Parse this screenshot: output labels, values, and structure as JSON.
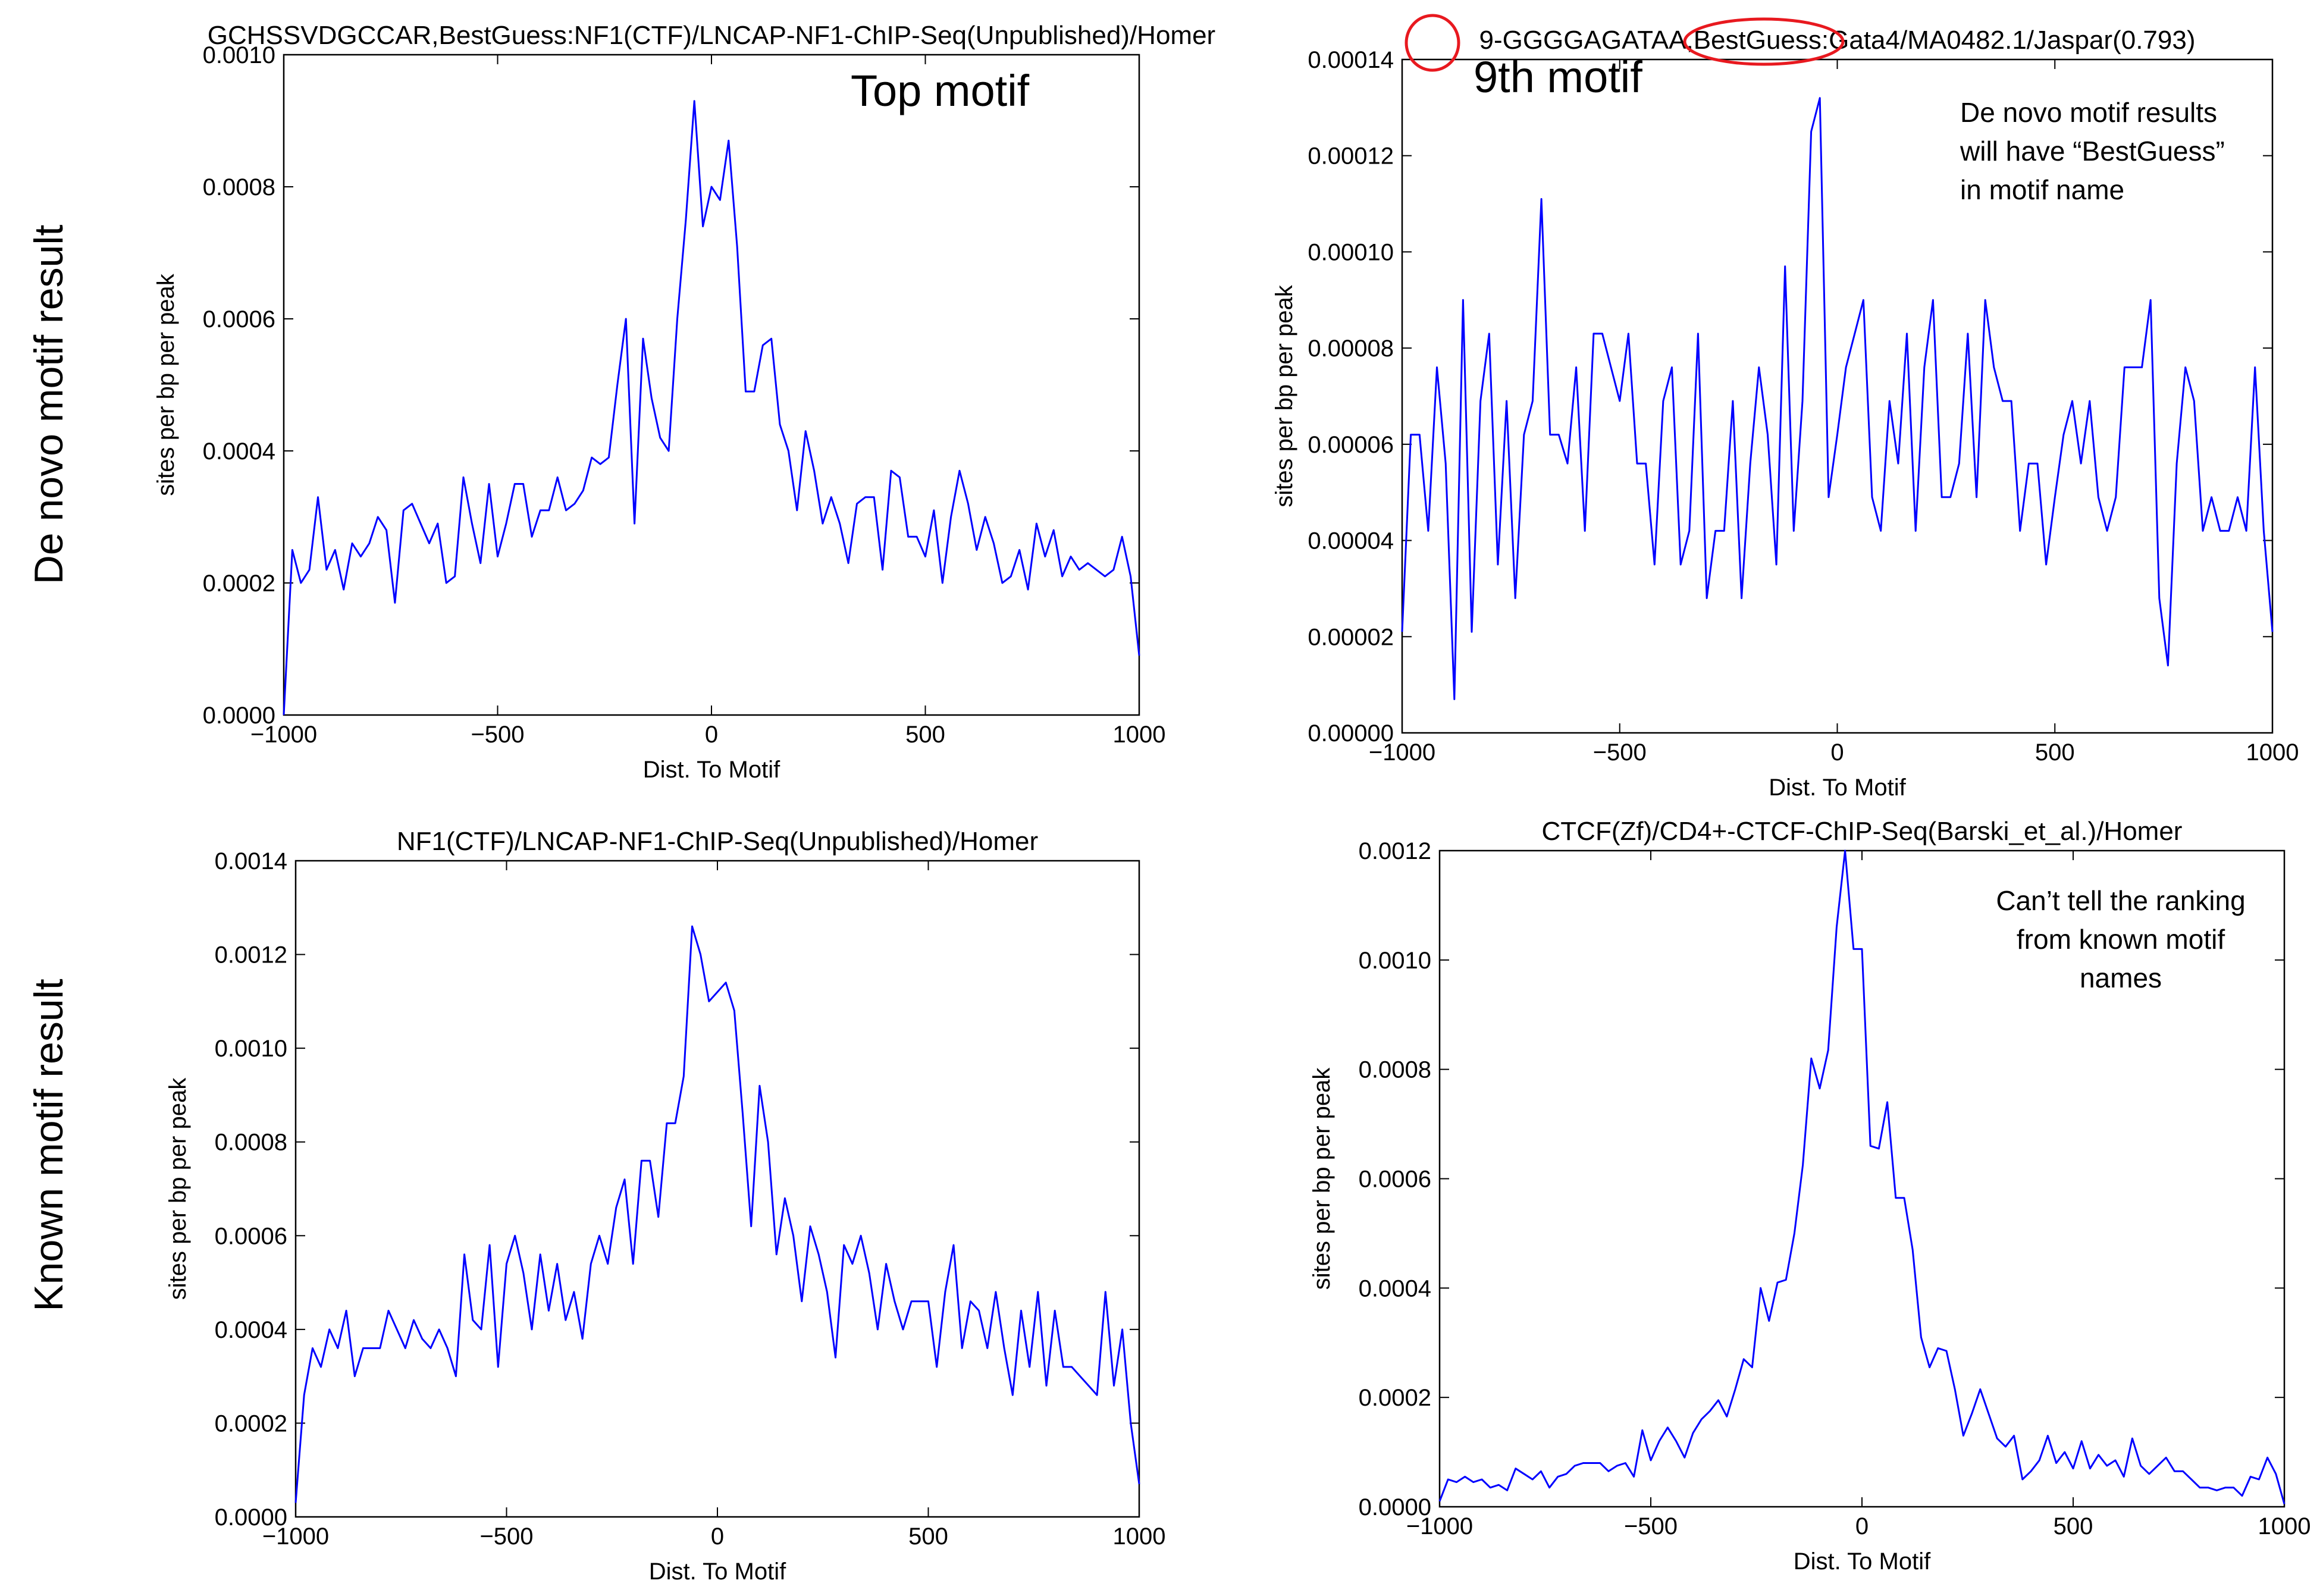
{
  "row_labels": {
    "de_novo": "De novo motif result",
    "known": "Known motif result"
  },
  "colors": {
    "line": "#0000ff",
    "highlight": "#e8191f",
    "axis": "#000000"
  },
  "chart_data": [
    {
      "id": "top-left",
      "type": "line",
      "title": "GCHSSVDGCCAR,BestGuess:NF1(CTF)/LNCAP-NF1-ChIP-Seq(Unpublished)/Homer",
      "xlabel": "Dist. To Motif",
      "ylabel": "sites per bp per peak",
      "xlim": [
        -1000,
        1000
      ],
      "ylim": [
        0,
        0.001
      ],
      "xticks": [
        -1000,
        -500,
        0,
        500,
        1000
      ],
      "xtick_labels": [
        "−1000",
        "−500",
        "0",
        "500",
        "1000"
      ],
      "yticks": [
        0,
        0.0002,
        0.0004,
        0.0006,
        0.0008,
        0.001
      ],
      "ytick_labels": [
        "0.0000",
        "0.0002",
        "0.0004",
        "0.0006",
        "0.0008",
        "0.0010"
      ],
      "annotations": [
        "Top motif"
      ],
      "series": [
        {
          "x": [
            -1000,
            -980,
            -960,
            -940,
            -920,
            -900,
            -880,
            -860,
            -840,
            -820,
            -800,
            -780,
            -760,
            -740,
            -720,
            -700,
            -680,
            -660,
            -640,
            -620,
            -600,
            -580,
            -560,
            -540,
            -520,
            -500,
            -480,
            -460,
            -440,
            -420,
            -400,
            -380,
            -360,
            -340,
            -320,
            -300,
            -280,
            -260,
            -240,
            -220,
            -200,
            -180,
            -160,
            -140,
            -120,
            -100,
            -80,
            -60,
            -40,
            -20,
            0,
            20,
            40,
            60,
            80,
            100,
            120,
            140,
            160,
            180,
            200,
            220,
            240,
            260,
            280,
            300,
            320,
            340,
            360,
            380,
            400,
            420,
            440,
            460,
            480,
            500,
            520,
            540,
            560,
            580,
            600,
            620,
            640,
            660,
            680,
            700,
            720,
            740,
            760,
            780,
            800,
            820,
            840,
            860,
            880,
            900,
            920,
            940,
            960,
            980,
            1000
          ],
          "y": [
            0.0,
            0.00025,
            0.0002,
            0.00022,
            0.00033,
            0.00022,
            0.00025,
            0.00019,
            0.00026,
            0.00024,
            0.00026,
            0.0003,
            0.00028,
            0.00017,
            0.00031,
            0.00032,
            0.00029,
            0.00026,
            0.00029,
            0.0002,
            0.00021,
            0.00036,
            0.00029,
            0.00023,
            0.00035,
            0.00024,
            0.00029,
            0.00035,
            0.00035,
            0.00027,
            0.00031,
            0.00031,
            0.00036,
            0.00031,
            0.00032,
            0.00034,
            0.00039,
            0.00038,
            0.00039,
            0.0005,
            0.0006,
            0.00029,
            0.00057,
            0.00048,
            0.00042,
            0.0004,
            0.0006,
            0.00075,
            0.00093,
            0.00074,
            0.0008,
            0.00078,
            0.00087,
            0.00071,
            0.00049,
            0.00049,
            0.00056,
            0.00057,
            0.00044,
            0.0004,
            0.00031,
            0.00043,
            0.00037,
            0.00029,
            0.00033,
            0.00029,
            0.00023,
            0.00032,
            0.00033,
            0.00033,
            0.00022,
            0.00037,
            0.00036,
            0.00027,
            0.00027,
            0.00024,
            0.00031,
            0.0002,
            0.0003,
            0.00037,
            0.00032,
            0.00025,
            0.0003,
            0.00026,
            0.0002,
            0.00021,
            0.00025,
            0.00019,
            0.00029,
            0.00024,
            0.00028,
            0.00021,
            0.00024,
            0.00022,
            0.00023,
            0.00022,
            0.00021,
            0.00022,
            0.00027,
            0.00021,
            9e-05
          ]
        }
      ]
    },
    {
      "id": "top-right",
      "type": "line",
      "title": "9-GGGGAGATAA,BestGuess:Gata4/MA0482.1/Jaspar(0.793)",
      "xlabel": "Dist. To Motif",
      "ylabel": "sites per bp per peak",
      "xlim": [
        -1000,
        1000
      ],
      "ylim": [
        0,
        0.00014
      ],
      "xticks": [
        -1000,
        -500,
        0,
        500,
        1000
      ],
      "xtick_labels": [
        "−1000",
        "−500",
        "0",
        "500",
        "1000"
      ],
      "yticks": [
        0,
        2e-05,
        4e-05,
        6e-05,
        8e-05,
        0.0001,
        0.00012,
        0.00014
      ],
      "ytick_labels": [
        "0.00000",
        "0.00002",
        "0.00004",
        "0.00006",
        "0.00008",
        "0.00010",
        "0.00012",
        "0.00014"
      ],
      "annotations": [
        "9th motif",
        "De novo motif results",
        "will have “BestGuess”",
        "in motif name"
      ],
      "series": [
        {
          "x": [
            -1000,
            -980,
            -960,
            -940,
            -920,
            -900,
            -880,
            -860,
            -840,
            -820,
            -800,
            -780,
            -760,
            -740,
            -720,
            -700,
            -680,
            -660,
            -640,
            -620,
            -600,
            -580,
            -560,
            -540,
            -520,
            -500,
            -480,
            -460,
            -440,
            -420,
            -400,
            -380,
            -360,
            -340,
            -320,
            -300,
            -280,
            -260,
            -240,
            -220,
            -200,
            -180,
            -160,
            -140,
            -120,
            -100,
            -80,
            -60,
            -40,
            -20,
            0,
            20,
            40,
            60,
            80,
            100,
            120,
            140,
            160,
            180,
            200,
            220,
            240,
            260,
            280,
            300,
            320,
            340,
            360,
            380,
            400,
            420,
            440,
            460,
            480,
            500,
            520,
            540,
            560,
            580,
            600,
            620,
            640,
            660,
            680,
            700,
            720,
            740,
            760,
            780,
            800,
            820,
            840,
            860,
            880,
            900,
            920,
            940,
            960,
            980,
            1000
          ],
          "y": [
            2.1e-05,
            6.2e-05,
            6.2e-05,
            4.2e-05,
            7.6e-05,
            5.6e-05,
            7e-06,
            9e-05,
            2.1e-05,
            6.9e-05,
            8.3e-05,
            3.5e-05,
            6.9e-05,
            2.8e-05,
            6.2e-05,
            6.9e-05,
            0.000111,
            6.2e-05,
            6.2e-05,
            5.6e-05,
            7.6e-05,
            4.2e-05,
            8.3e-05,
            8.3e-05,
            7.6e-05,
            6.9e-05,
            8.3e-05,
            5.6e-05,
            5.6e-05,
            3.5e-05,
            6.9e-05,
            7.6e-05,
            3.5e-05,
            4.2e-05,
            8.3e-05,
            2.8e-05,
            4.2e-05,
            4.2e-05,
            6.9e-05,
            2.8e-05,
            5.6e-05,
            7.6e-05,
            6.2e-05,
            3.5e-05,
            9.7e-05,
            4.2e-05,
            6.9e-05,
            0.000125,
            0.000132,
            4.9e-05,
            6.2e-05,
            7.6e-05,
            8.3e-05,
            9e-05,
            4.9e-05,
            4.2e-05,
            6.9e-05,
            5.6e-05,
            8.3e-05,
            4.2e-05,
            7.6e-05,
            9e-05,
            4.9e-05,
            4.9e-05,
            5.6e-05,
            8.3e-05,
            4.9e-05,
            9e-05,
            7.6e-05,
            6.9e-05,
            6.9e-05,
            4.2e-05,
            5.6e-05,
            5.6e-05,
            3.5e-05,
            4.9e-05,
            6.2e-05,
            6.9e-05,
            5.6e-05,
            6.9e-05,
            4.9e-05,
            4.2e-05,
            4.9e-05,
            7.6e-05,
            7.6e-05,
            7.6e-05,
            9e-05,
            2.8e-05,
            1.4e-05,
            5.6e-05,
            7.6e-05,
            6.9e-05,
            4.2e-05,
            4.9e-05,
            4.2e-05,
            4.2e-05,
            4.9e-05,
            4.2e-05,
            7.6e-05,
            4.2e-05,
            2.1e-05
          ]
        }
      ]
    },
    {
      "id": "bottom-left",
      "type": "line",
      "title": "NF1(CTF)/LNCAP-NF1-ChIP-Seq(Unpublished)/Homer",
      "xlabel": "Dist. To Motif",
      "ylabel": "sites per bp per peak",
      "xlim": [
        -1000,
        1000
      ],
      "ylim": [
        0,
        0.0014
      ],
      "xticks": [
        -1000,
        -500,
        0,
        500,
        1000
      ],
      "xtick_labels": [
        "−1000",
        "−500",
        "0",
        "500",
        "1000"
      ],
      "yticks": [
        0,
        0.0002,
        0.0004,
        0.0006,
        0.0008,
        0.001,
        0.0012,
        0.0014
      ],
      "ytick_labels": [
        "0.0000",
        "0.0002",
        "0.0004",
        "0.0006",
        "0.0008",
        "0.0010",
        "0.0012",
        "0.0014"
      ],
      "annotations": [],
      "series": [
        {
          "x": [
            -1000,
            -980,
            -960,
            -940,
            -920,
            -900,
            -880,
            -860,
            -840,
            -820,
            -800,
            -780,
            -760,
            -740,
            -720,
            -700,
            -680,
            -660,
            -640,
            -620,
            -600,
            -580,
            -560,
            -540,
            -520,
            -500,
            -480,
            -460,
            -440,
            -420,
            -400,
            -380,
            -360,
            -340,
            -320,
            -300,
            -280,
            -260,
            -240,
            -220,
            -200,
            -180,
            -160,
            -140,
            -120,
            -100,
            -80,
            -60,
            -40,
            -20,
            0,
            20,
            40,
            60,
            80,
            100,
            120,
            140,
            160,
            180,
            200,
            220,
            240,
            260,
            280,
            300,
            320,
            340,
            360,
            380,
            400,
            420,
            440,
            460,
            480,
            500,
            520,
            540,
            560,
            580,
            600,
            620,
            640,
            660,
            680,
            700,
            720,
            740,
            760,
            780,
            800,
            820,
            840,
            860,
            880,
            900,
            920,
            940,
            960,
            980,
            1000
          ],
          "y": [
            3e-05,
            0.00026,
            0.00036,
            0.00032,
            0.0004,
            0.00036,
            0.00044,
            0.0003,
            0.00036,
            0.00036,
            0.00036,
            0.00044,
            0.0004,
            0.00036,
            0.00042,
            0.00038,
            0.00036,
            0.0004,
            0.00036,
            0.0003,
            0.00056,
            0.00042,
            0.0004,
            0.00058,
            0.00032,
            0.00054,
            0.0006,
            0.00052,
            0.0004,
            0.00056,
            0.00044,
            0.00054,
            0.00042,
            0.00048,
            0.00038,
            0.00054,
            0.0006,
            0.00054,
            0.00066,
            0.00072,
            0.00054,
            0.00076,
            0.00076,
            0.00064,
            0.00084,
            0.00084,
            0.00094,
            0.00126,
            0.0012,
            0.0011,
            0.00112,
            0.00114,
            0.00108,
            0.00086,
            0.00062,
            0.00092,
            0.0008,
            0.00056,
            0.00068,
            0.0006,
            0.00046,
            0.00062,
            0.00056,
            0.00048,
            0.00034,
            0.00058,
            0.00054,
            0.0006,
            0.00052,
            0.0004,
            0.00054,
            0.00046,
            0.0004,
            0.00046,
            0.00046,
            0.00046,
            0.00032,
            0.00048,
            0.00058,
            0.00036,
            0.00046,
            0.00044,
            0.00036,
            0.00048,
            0.00036,
            0.00026,
            0.00044,
            0.00032,
            0.00048,
            0.00028,
            0.00044,
            0.00032,
            0.00032,
            0.0003,
            0.00028,
            0.00026,
            0.00048,
            0.00028,
            0.0004,
            0.0002,
            7e-05
          ]
        }
      ]
    },
    {
      "id": "bottom-right",
      "type": "line",
      "title": "CTCF(Zf)/CD4+-CTCF-ChIP-Seq(Barski_et_al.)/Homer",
      "xlabel": "Dist. To Motif",
      "ylabel": "sites per bp per peak",
      "xlim": [
        -1000,
        1000
      ],
      "ylim": [
        0,
        0.0012
      ],
      "xticks": [
        -1000,
        -500,
        0,
        500,
        1000
      ],
      "xtick_labels": [
        "−1000",
        "−500",
        "0",
        "500",
        "1000"
      ],
      "yticks": [
        0,
        0.0002,
        0.0004,
        0.0006,
        0.0008,
        0.001,
        0.0012
      ],
      "ytick_labels": [
        "0.0000",
        "0.0002",
        "0.0004",
        "0.0006",
        "0.0008",
        "0.0010",
        "0.0012"
      ],
      "annotations": [
        "Can’t tell the ranking",
        "from known motif",
        "names"
      ],
      "series": [
        {
          "x": [
            -1000,
            -980,
            -960,
            -940,
            -920,
            -900,
            -880,
            -860,
            -840,
            -820,
            -800,
            -780,
            -760,
            -740,
            -720,
            -700,
            -680,
            -660,
            -640,
            -620,
            -600,
            -580,
            -560,
            -540,
            -520,
            -500,
            -480,
            -460,
            -440,
            -420,
            -400,
            -380,
            -360,
            -340,
            -320,
            -300,
            -280,
            -260,
            -240,
            -220,
            -200,
            -180,
            -160,
            -140,
            -120,
            -100,
            -80,
            -60,
            -40,
            -20,
            0,
            20,
            40,
            60,
            80,
            100,
            120,
            140,
            160,
            180,
            200,
            220,
            240,
            260,
            280,
            300,
            320,
            340,
            360,
            380,
            400,
            420,
            440,
            460,
            480,
            500,
            520,
            540,
            560,
            580,
            600,
            620,
            640,
            660,
            680,
            700,
            720,
            740,
            760,
            780,
            800,
            820,
            840,
            860,
            880,
            900,
            920,
            940,
            960,
            980,
            1000
          ],
          "y": [
            1e-05,
            5e-05,
            4.5e-05,
            5.5e-05,
            4.5e-05,
            5e-05,
            3.5e-05,
            4e-05,
            3e-05,
            7e-05,
            6e-05,
            5e-05,
            6.5e-05,
            3.5e-05,
            5.5e-05,
            6e-05,
            7.5e-05,
            8e-05,
            8e-05,
            8e-05,
            6.5e-05,
            7.5e-05,
            8e-05,
            5.5e-05,
            0.00014,
            8.5e-05,
            0.00012,
            0.000145,
            0.00012,
            9e-05,
            0.000135,
            0.00016,
            0.000175,
            0.000195,
            0.000165,
            0.000215,
            0.00027,
            0.000255,
            0.0004,
            0.00034,
            0.00041,
            0.000415,
            0.0005,
            0.000625,
            0.00082,
            0.000765,
            0.000835,
            0.00106,
            0.0012,
            0.00102,
            0.00102,
            0.00066,
            0.000655,
            0.00074,
            0.000565,
            0.000565,
            0.00047,
            0.00031,
            0.000255,
            0.00029,
            0.000285,
            0.000215,
            0.00013,
            0.00017,
            0.000215,
            0.00017,
            0.000125,
            0.00011,
            0.00013,
            5e-05,
            6.5e-05,
            8.5e-05,
            0.00013,
            8e-05,
            0.0001,
            7e-05,
            0.00012,
            7e-05,
            9.5e-05,
            7.5e-05,
            8.5e-05,
            5.5e-05,
            0.000125,
            7.5e-05,
            6e-05,
            7.5e-05,
            9e-05,
            6.5e-05,
            6.5e-05,
            5e-05,
            3.5e-05,
            3.5e-05,
            3e-05,
            3.5e-05,
            3.5e-05,
            2e-05,
            5.5e-05,
            5e-05,
            9e-05,
            6e-05,
            5e-06
          ]
        }
      ]
    }
  ]
}
